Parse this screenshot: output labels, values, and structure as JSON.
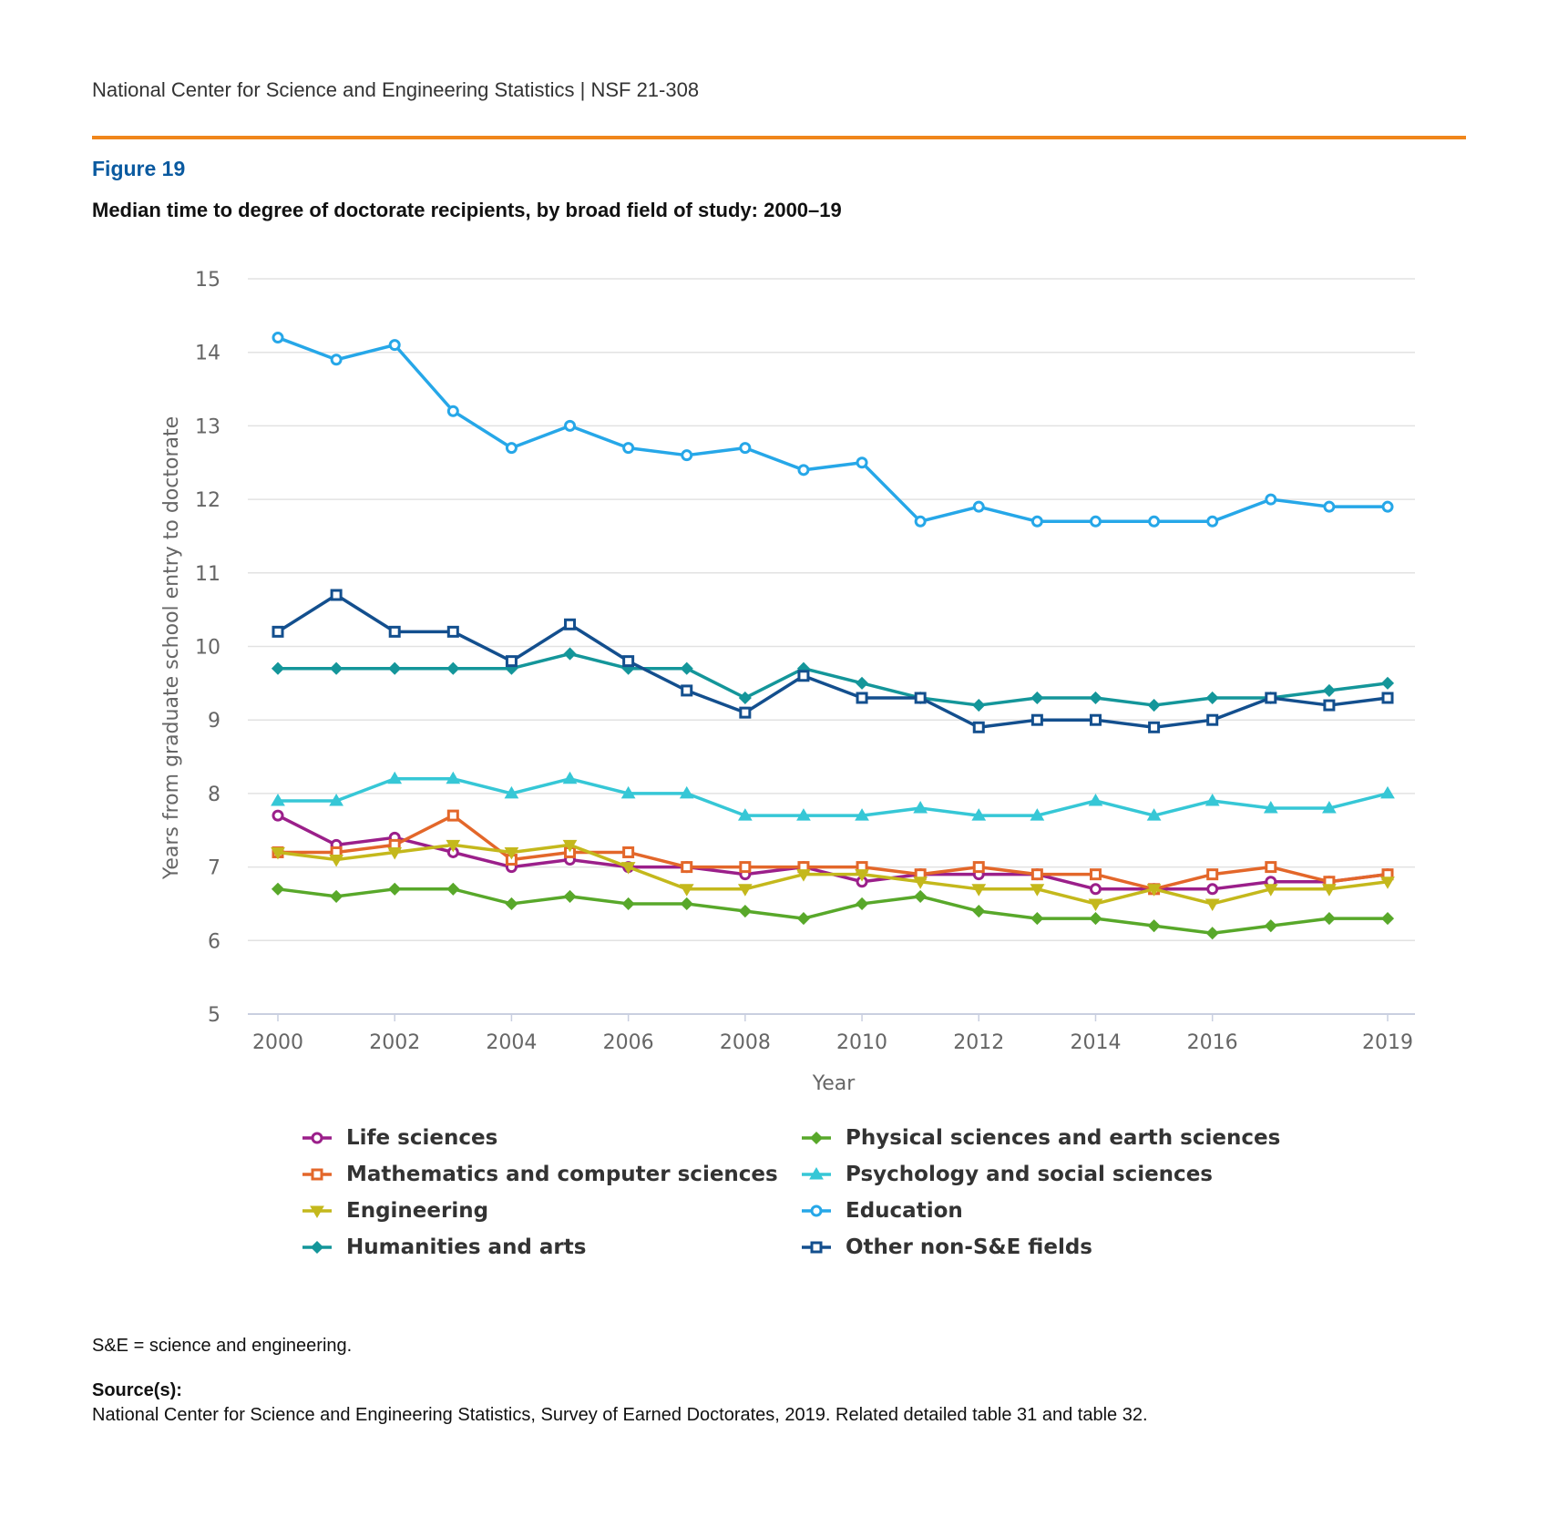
{
  "header": {
    "text": "National Center for Science and Engineering Statistics  |  NSF 21-308"
  },
  "figure": {
    "label": "Figure 19",
    "title": "Median time to degree of doctorate recipients, by broad field of study: 2000–19"
  },
  "notes": {
    "abbrev": "S&E = science and engineering.",
    "source_label": "Source(s):",
    "source_text": "National Center for Science and Engineering Statistics, Survey of Earned Doctorates, 2019. Related detailed table 31 and table 32."
  },
  "colors": {
    "accent_rule": "#f0861b",
    "figure_label": "#0a5aa0",
    "grid": "#e2e2e2",
    "axis_text": "#666666"
  },
  "chart_data": {
    "type": "line",
    "title": "Median time to degree of doctorate recipients, by broad field of study: 2000–19",
    "xlabel": "Year",
    "ylabel": "Years from graduate school entry to doctorate",
    "ylim": [
      5,
      15
    ],
    "xlim": [
      2000,
      2019
    ],
    "y_ticks": [
      5,
      6,
      7,
      8,
      9,
      10,
      11,
      12,
      13,
      14,
      15
    ],
    "x_ticks": [
      2000,
      2002,
      2004,
      2006,
      2008,
      2010,
      2012,
      2014,
      2016,
      2019
    ],
    "grid": true,
    "legend_position": "bottom",
    "x": [
      2000,
      2001,
      2002,
      2003,
      2004,
      2005,
      2006,
      2007,
      2008,
      2009,
      2010,
      2011,
      2012,
      2013,
      2014,
      2015,
      2016,
      2017,
      2018,
      2019
    ],
    "series": [
      {
        "name": "Life sciences",
        "color": "#9b1f8a",
        "marker": "circle",
        "values": [
          7.7,
          7.3,
          7.4,
          7.2,
          7.0,
          7.1,
          7.0,
          7.0,
          6.9,
          7.0,
          6.8,
          6.9,
          6.9,
          6.9,
          6.7,
          6.7,
          6.7,
          6.8,
          6.8,
          6.9
        ]
      },
      {
        "name": "Physical sciences and earth sciences",
        "color": "#58a82a",
        "marker": "diamond",
        "values": [
          6.7,
          6.6,
          6.7,
          6.7,
          6.5,
          6.6,
          6.5,
          6.5,
          6.4,
          6.3,
          6.5,
          6.6,
          6.4,
          6.3,
          6.3,
          6.2,
          6.1,
          6.2,
          6.3,
          6.3
        ]
      },
      {
        "name": "Mathematics and computer sciences",
        "color": "#e3672a",
        "marker": "square",
        "values": [
          7.2,
          7.2,
          7.3,
          7.7,
          7.1,
          7.2,
          7.2,
          7.0,
          7.0,
          7.0,
          7.0,
          6.9,
          7.0,
          6.9,
          6.9,
          6.7,
          6.9,
          7.0,
          6.8,
          6.9
        ]
      },
      {
        "name": "Psychology and social sciences",
        "color": "#36c7d6",
        "marker": "triangle-up",
        "values": [
          7.9,
          7.9,
          8.2,
          8.2,
          8.0,
          8.2,
          8.0,
          8.0,
          7.7,
          7.7,
          7.7,
          7.8,
          7.7,
          7.7,
          7.9,
          7.7,
          7.9,
          7.8,
          7.8,
          8.0
        ]
      },
      {
        "name": "Engineering",
        "color": "#c4b81c",
        "marker": "triangle-down",
        "values": [
          7.2,
          7.1,
          7.2,
          7.3,
          7.2,
          7.3,
          7.0,
          6.7,
          6.7,
          6.9,
          6.9,
          6.8,
          6.7,
          6.7,
          6.5,
          6.7,
          6.5,
          6.7,
          6.7,
          6.8
        ]
      },
      {
        "name": "Education",
        "color": "#26a7e8",
        "marker": "circle",
        "values": [
          14.2,
          13.9,
          14.1,
          13.2,
          12.7,
          13.0,
          12.7,
          12.6,
          12.7,
          12.4,
          12.5,
          11.7,
          11.9,
          11.7,
          11.7,
          11.7,
          11.7,
          12.0,
          11.9,
          11.9
        ]
      },
      {
        "name": "Humanities and arts",
        "color": "#14969a",
        "marker": "diamond",
        "values": [
          9.7,
          9.7,
          9.7,
          9.7,
          9.7,
          9.9,
          9.7,
          9.7,
          9.3,
          9.7,
          9.5,
          9.3,
          9.2,
          9.3,
          9.3,
          9.2,
          9.3,
          9.3,
          9.4,
          9.5
        ]
      },
      {
        "name": "Other non-S&E fields",
        "color": "#134f8e",
        "marker": "square",
        "values": [
          10.2,
          10.7,
          10.2,
          10.2,
          9.8,
          10.3,
          9.8,
          9.4,
          9.1,
          9.6,
          9.3,
          9.3,
          8.9,
          9.0,
          9.0,
          8.9,
          9.0,
          9.3,
          9.2,
          9.3
        ]
      }
    ]
  }
}
